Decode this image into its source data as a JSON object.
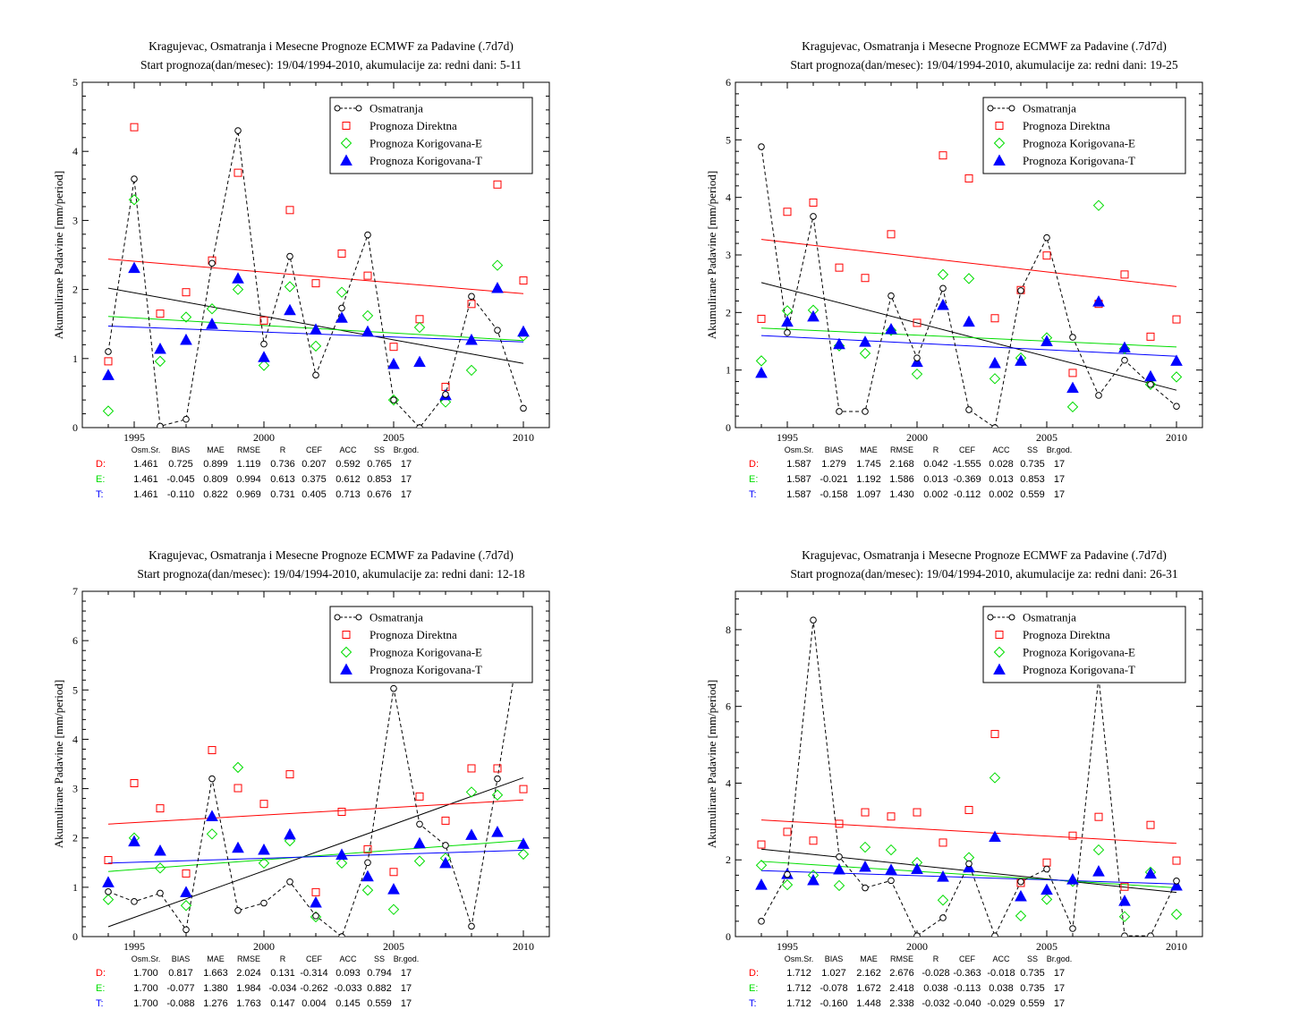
{
  "colors": {
    "obs": "#000000",
    "direct": "#ff0000",
    "corr_e": "#00dd00",
    "corr_t": "#0000ff"
  },
  "legend_labels": [
    "Osmatranja",
    "Prognoza Direktna",
    "Prognoza Korigovana-E",
    "Prognoza Korigovana-T"
  ],
  "stat_headers": [
    "Osm.Sr.",
    "BIAS",
    "MAE",
    "RMSE",
    "R",
    "CEF",
    "ACC",
    "SS",
    "Br.god."
  ],
  "chart_data": [
    {
      "type": "scatter",
      "title": "Kragujevac, Osmatranja i Mesecne Prognoze ECMWF za Padavine (.7d7d)",
      "subtitle": "Start prognoza(dan/mesec): 19/04/1994-2010, akumulacije za: redni dani: 5-11",
      "ylabel": "Akumulirane Padavine [mm/period]",
      "xlim": [
        1993,
        2011
      ],
      "ylim": [
        0,
        5
      ],
      "xticks": [
        "1995",
        "2000",
        "2005",
        "2010"
      ],
      "yticks": [
        "0",
        "1",
        "2",
        "3",
        "4",
        "5"
      ],
      "x": [
        1994,
        1995,
        1996,
        1997,
        1998,
        1999,
        2000,
        2001,
        2002,
        2003,
        2004,
        2005,
        2006,
        2007,
        2008,
        2009,
        2010
      ],
      "obs": [
        1.1,
        3.6,
        0.02,
        0.12,
        2.38,
        4.3,
        1.21,
        2.48,
        0.76,
        1.73,
        2.79,
        0.4,
        0.0,
        0.48,
        1.9,
        1.41,
        0.28
      ],
      "direct": [
        0.96,
        4.35,
        1.65,
        1.96,
        2.42,
        3.69,
        1.55,
        3.15,
        2.09,
        2.52,
        2.2,
        1.17,
        1.57,
        0.59,
        1.79,
        3.52,
        2.13
      ],
      "corr_e": [
        0.24,
        3.3,
        0.96,
        1.6,
        1.72,
        2.0,
        0.9,
        2.04,
        1.18,
        1.96,
        1.62,
        0.4,
        1.45,
        0.37,
        0.83,
        2.35,
        1.33
      ],
      "corr_t": [
        0.76,
        2.31,
        1.14,
        1.27,
        1.5,
        2.16,
        1.02,
        1.7,
        1.42,
        1.59,
        1.39,
        0.92,
        0.95,
        0.47,
        1.27,
        2.02,
        1.39
      ],
      "trends": {
        "obs": [
          2.02,
          0.93
        ],
        "direct": [
          2.44,
          1.94
        ],
        "corr_e": [
          1.61,
          1.26
        ],
        "corr_t": [
          1.47,
          1.24
        ]
      },
      "stats": [
        [
          "D:",
          "1.461",
          "0.725",
          "0.899",
          "1.119",
          "0.736",
          "0.207",
          "0.592",
          "0.765",
          "17"
        ],
        [
          "E:",
          "1.461",
          "-0.045",
          "0.809",
          "0.994",
          "0.613",
          "0.375",
          "0.612",
          "0.853",
          "17"
        ],
        [
          "T:",
          "1.461",
          "-0.110",
          "0.822",
          "0.969",
          "0.731",
          "0.405",
          "0.713",
          "0.676",
          "17"
        ]
      ]
    },
    {
      "type": "scatter",
      "title": "Kragujevac, Osmatranja i Mesecne Prognoze ECMWF za Padavine (.7d7d)",
      "subtitle": "Start prognoza(dan/mesec): 19/04/1994-2010, akumulacije za: redni dani: 19-25",
      "ylabel": "Akumulirane Padavine [mm/period]",
      "xlim": [
        1993,
        2011
      ],
      "ylim": [
        0,
        6
      ],
      "xticks": [
        "1995",
        "2000",
        "2005",
        "2010"
      ],
      "yticks": [
        "0",
        "1",
        "2",
        "3",
        "4",
        "5",
        "6"
      ],
      "x": [
        1994,
        1995,
        1996,
        1997,
        1998,
        1999,
        2000,
        2001,
        2002,
        2003,
        2004,
        2005,
        2006,
        2007,
        2008,
        2009,
        2010
      ],
      "obs": [
        4.88,
        1.65,
        3.67,
        0.28,
        0.28,
        2.29,
        1.21,
        2.42,
        0.31,
        0.0,
        2.38,
        3.3,
        1.57,
        0.56,
        1.17,
        0.75,
        0.37
      ],
      "direct": [
        1.89,
        3.75,
        3.91,
        2.78,
        2.6,
        3.36,
        1.82,
        4.73,
        4.33,
        1.9,
        2.39,
        2.99,
        0.95,
        2.15,
        2.66,
        1.58,
        1.88
      ],
      "corr_e": [
        1.16,
        2.03,
        2.04,
        1.42,
        1.29,
        1.69,
        0.93,
        2.66,
        2.59,
        0.85,
        1.21,
        1.56,
        0.36,
        3.86,
        1.37,
        0.75,
        0.88
      ],
      "corr_t": [
        0.95,
        1.84,
        1.93,
        1.45,
        1.49,
        1.71,
        1.14,
        2.13,
        1.84,
        1.12,
        1.16,
        1.5,
        0.69,
        2.19,
        1.39,
        0.89,
        1.16
      ],
      "trends": {
        "obs": [
          2.52,
          0.65
        ],
        "direct": [
          3.27,
          2.45
        ],
        "corr_e": [
          1.73,
          1.4
        ],
        "corr_t": [
          1.6,
          1.24
        ]
      },
      "stats": [
        [
          "D:",
          "1.587",
          "1.279",
          "1.745",
          "2.168",
          "0.042",
          "-1.555",
          "0.028",
          "0.735",
          "17"
        ],
        [
          "E:",
          "1.587",
          "-0.021",
          "1.192",
          "1.586",
          "0.013",
          "-0.369",
          "0.013",
          "0.853",
          "17"
        ],
        [
          "T:",
          "1.587",
          "-0.158",
          "1.097",
          "1.430",
          "0.002",
          "-0.112",
          "0.002",
          "0.559",
          "17"
        ]
      ]
    },
    {
      "type": "scatter",
      "title": "Kragujevac, Osmatranja i Mesecne Prognoze ECMWF za Padavine (.7d7d)",
      "subtitle": "Start prognoza(dan/mesec): 19/04/1994-2010, akumulacije za: redni dani: 12-18",
      "ylabel": "Akumulirane Padavine [mm/period]",
      "xlim": [
        1993,
        2011
      ],
      "ylim": [
        0,
        7
      ],
      "xticks": [
        "1995",
        "2000",
        "2005",
        "2010"
      ],
      "yticks": [
        "0",
        "1",
        "2",
        "3",
        "4",
        "5",
        "6",
        "7"
      ],
      "x": [
        1994,
        1995,
        1996,
        1997,
        1998,
        1999,
        2000,
        2001,
        2002,
        2003,
        2004,
        2005,
        2006,
        2007,
        2008,
        2009,
        2010
      ],
      "obs": [
        0.91,
        0.71,
        0.88,
        0.14,
        3.2,
        0.53,
        0.68,
        1.11,
        0.42,
        0.0,
        1.5,
        5.03,
        2.28,
        1.85,
        0.21,
        3.2,
        6.46
      ],
      "direct": [
        1.55,
        3.11,
        2.6,
        1.28,
        3.78,
        3.01,
        2.69,
        3.29,
        0.9,
        2.53,
        1.77,
        1.31,
        2.84,
        2.35,
        3.41,
        3.41,
        2.99
      ],
      "corr_e": [
        0.75,
        2.0,
        1.39,
        0.63,
        2.08,
        3.43,
        1.49,
        1.94,
        0.4,
        1.49,
        0.94,
        0.55,
        1.53,
        1.59,
        2.93,
        2.87,
        1.67
      ],
      "corr_t": [
        1.1,
        1.93,
        1.74,
        0.9,
        2.44,
        1.8,
        1.76,
        2.07,
        0.69,
        1.66,
        1.22,
        0.96,
        1.89,
        1.49,
        2.06,
        2.12,
        1.88
      ],
      "trends": {
        "obs": [
          0.2,
          3.22
        ],
        "direct": [
          2.28,
          2.77
        ],
        "corr_e": [
          1.32,
          1.95
        ],
        "corr_t": [
          1.49,
          1.75
        ]
      },
      "stats": [
        [
          "D:",
          "1.700",
          "0.817",
          "1.663",
          "2.024",
          "0.131",
          "-0.314",
          "0.093",
          "0.794",
          "17"
        ],
        [
          "E:",
          "1.700",
          "-0.077",
          "1.380",
          "1.984",
          "-0.034",
          "-0.262",
          "-0.033",
          "0.882",
          "17"
        ],
        [
          "T:",
          "1.700",
          "-0.088",
          "1.276",
          "1.763",
          "0.147",
          "0.004",
          "0.145",
          "0.559",
          "17"
        ]
      ]
    },
    {
      "type": "scatter",
      "title": "Kragujevac, Osmatranja i Mesecne Prognoze ECMWF za Padavine (.7d7d)",
      "subtitle": "Start prognoza(dan/mesec): 19/04/1994-2010, akumulacije za: redni dani: 26-31",
      "ylabel": "Akumulirane Padavine [mm/period]",
      "xlim": [
        1993,
        2011
      ],
      "ylim": [
        0,
        9
      ],
      "xticks": [
        "1995",
        "2000",
        "2005",
        "2010"
      ],
      "yticks": [
        "0",
        "2",
        "4",
        "6",
        "8"
      ],
      "x": [
        1994,
        1995,
        1996,
        1997,
        1998,
        1999,
        2000,
        2001,
        2002,
        2003,
        2004,
        2005,
        2006,
        2007,
        2008,
        2009,
        2010
      ],
      "obs": [
        0.4,
        1.62,
        8.25,
        2.08,
        1.27,
        1.46,
        0.02,
        0.49,
        1.9,
        0.02,
        1.43,
        1.76,
        0.21,
        6.77,
        0.02,
        0.02,
        1.45
      ],
      "direct": [
        2.4,
        2.73,
        2.5,
        2.94,
        3.24,
        3.13,
        3.24,
        2.45,
        3.3,
        5.28,
        1.4,
        1.93,
        2.63,
        3.12,
        1.3,
        2.91,
        1.98
      ],
      "corr_e": [
        1.86,
        1.35,
        1.6,
        1.33,
        2.33,
        2.26,
        1.93,
        0.95,
        2.06,
        4.14,
        0.54,
        0.97,
        1.44,
        2.26,
        0.52,
        1.68,
        0.58
      ],
      "corr_t": [
        1.35,
        1.63,
        1.47,
        1.75,
        1.82,
        1.74,
        1.76,
        1.56,
        1.8,
        2.6,
        1.05,
        1.22,
        1.49,
        1.7,
        0.93,
        1.64,
        1.33
      ],
      "trends": {
        "obs": [
          2.28,
          1.15
        ],
        "direct": [
          3.04,
          2.43
        ],
        "corr_e": [
          1.96,
          1.27
        ],
        "corr_t": [
          1.72,
          1.37
        ]
      },
      "stats": [
        [
          "D:",
          "1.712",
          "1.027",
          "2.162",
          "2.676",
          "-0.028",
          "-0.363",
          "-0.018",
          "0.735",
          "17"
        ],
        [
          "E:",
          "1.712",
          "-0.078",
          "1.672",
          "2.418",
          "0.038",
          "-0.113",
          "0.038",
          "0.735",
          "17"
        ],
        [
          "T:",
          "1.712",
          "-0.160",
          "1.448",
          "2.338",
          "-0.032",
          "-0.040",
          "-0.029",
          "0.559",
          "17"
        ]
      ]
    }
  ]
}
